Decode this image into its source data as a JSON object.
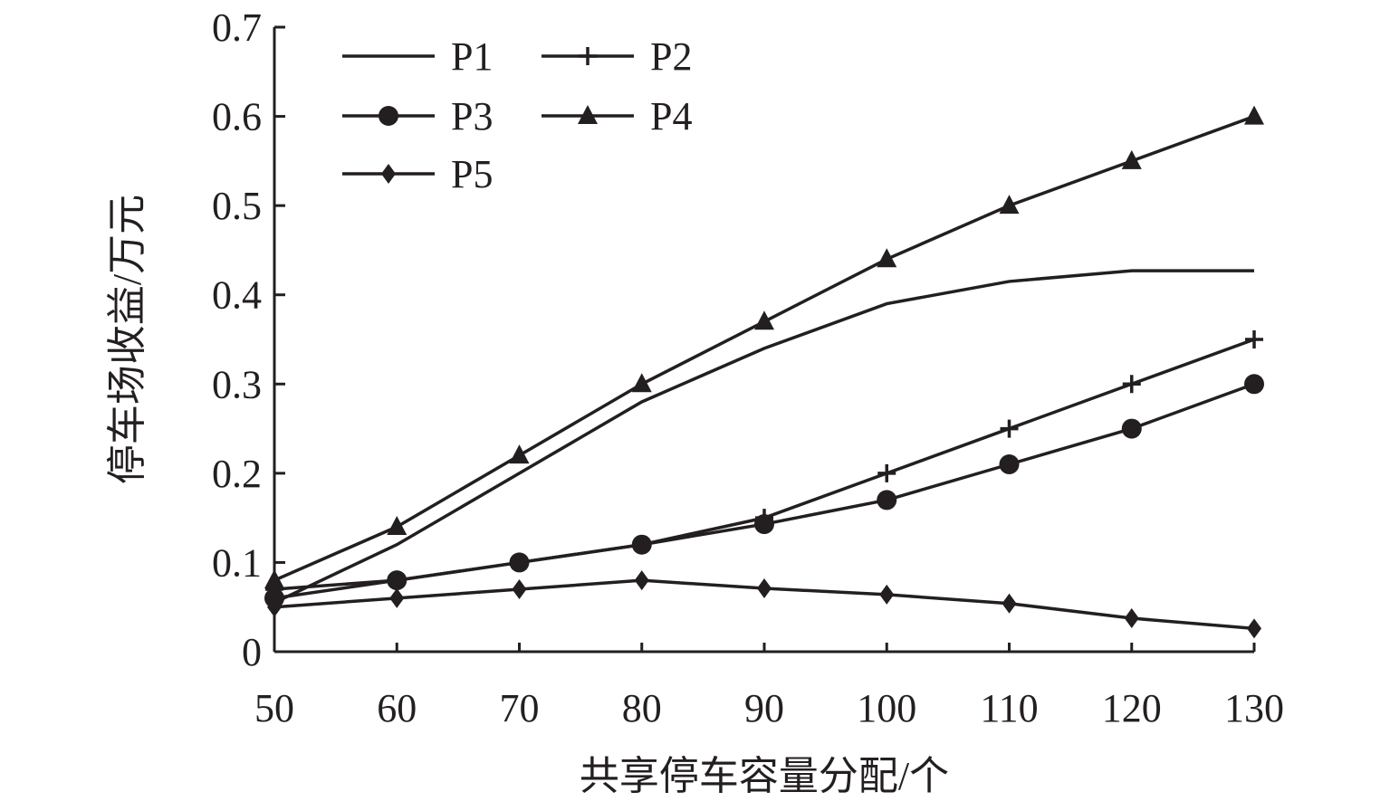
{
  "chart_data": {
    "type": "line",
    "title": "",
    "xlabel": "共享停车容量分配/个",
    "ylabel": "停车场收益/万元",
    "x": [
      50,
      60,
      70,
      80,
      90,
      100,
      110,
      120,
      130
    ],
    "xlim": [
      50,
      130
    ],
    "ylim": [
      0,
      0.7
    ],
    "xticks": [
      "50",
      "60",
      "70",
      "80",
      "90",
      "100",
      "110",
      "120",
      "130"
    ],
    "yticks": [
      "0",
      "0.1",
      "0.2",
      "0.3",
      "0.4",
      "0.5",
      "0.6",
      "0.7"
    ],
    "grid": false,
    "legend_position": "top-left",
    "series": [
      {
        "name": "P1",
        "marker": "none",
        "values": [
          0.055,
          0.12,
          0.2,
          0.28,
          0.34,
          0.39,
          0.415,
          0.427,
          0.427
        ]
      },
      {
        "name": "P2",
        "marker": "plus",
        "values": [
          0.07,
          0.08,
          0.1,
          0.12,
          0.15,
          0.2,
          0.25,
          0.3,
          0.35
        ]
      },
      {
        "name": "P3",
        "marker": "circle",
        "values": [
          0.06,
          0.08,
          0.1,
          0.12,
          0.143,
          0.17,
          0.21,
          0.25,
          0.3
        ]
      },
      {
        "name": "P4",
        "marker": "triangle",
        "values": [
          0.08,
          0.14,
          0.22,
          0.3,
          0.37,
          0.44,
          0.5,
          0.55,
          0.6
        ]
      },
      {
        "name": "P5",
        "marker": "diamond",
        "values": [
          0.05,
          0.06,
          0.07,
          0.08,
          0.071,
          0.064,
          0.054,
          0.0375,
          0.026
        ]
      }
    ],
    "color": "#231f20"
  }
}
